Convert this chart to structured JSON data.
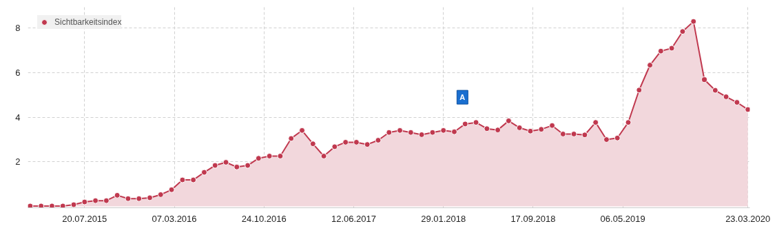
{
  "chart_data": {
    "type": "area",
    "x": [
      "2015-03-02",
      "2015-03-30",
      "2015-04-27",
      "2015-05-25",
      "2015-06-22",
      "2015-07-20",
      "2015-08-17",
      "2015-09-14",
      "2015-10-12",
      "2015-11-09",
      "2015-12-07",
      "2016-01-04",
      "2016-02-01",
      "2016-02-29",
      "2016-03-28",
      "2016-04-25",
      "2016-05-23",
      "2016-06-20",
      "2016-07-18",
      "2016-08-15",
      "2016-09-12",
      "2016-10-10",
      "2016-11-07",
      "2016-12-05",
      "2017-01-02",
      "2017-01-30",
      "2017-02-27",
      "2017-03-27",
      "2017-04-24",
      "2017-05-22",
      "2017-06-19",
      "2017-07-17",
      "2017-08-14",
      "2017-09-11",
      "2017-10-09",
      "2017-11-06",
      "2017-12-04",
      "2018-01-01",
      "2018-01-29",
      "2018-02-26",
      "2018-03-26",
      "2018-04-23",
      "2018-05-21",
      "2018-06-18",
      "2018-07-16",
      "2018-08-13",
      "2018-09-10",
      "2018-10-08",
      "2018-11-05",
      "2018-12-03",
      "2018-12-31",
      "2019-01-28",
      "2019-02-25",
      "2019-03-25",
      "2019-04-22",
      "2019-05-20",
      "2019-06-17",
      "2019-07-15",
      "2019-08-12",
      "2019-09-09",
      "2019-10-07",
      "2019-11-04",
      "2019-12-02",
      "2019-12-30",
      "2020-01-27",
      "2020-02-24",
      "2020-03-23"
    ],
    "series": [
      {
        "name": "Sichtbarkeitsindex",
        "color": "#c0394f",
        "values": [
          0.02,
          0.02,
          0.02,
          0.02,
          0.08,
          0.2,
          0.26,
          0.26,
          0.5,
          0.35,
          0.35,
          0.39,
          0.53,
          0.75,
          1.19,
          1.19,
          1.53,
          1.84,
          1.98,
          1.77,
          1.84,
          2.16,
          2.26,
          2.26,
          3.05,
          3.41,
          2.81,
          2.26,
          2.68,
          2.88,
          2.88,
          2.78,
          2.97,
          3.32,
          3.41,
          3.32,
          3.22,
          3.32,
          3.41,
          3.35,
          3.7,
          3.77,
          3.49,
          3.43,
          3.84,
          3.53,
          3.38,
          3.46,
          3.63,
          3.25,
          3.25,
          3.21,
          3.77,
          3.0,
          3.07,
          3.77,
          5.22,
          6.34,
          6.97,
          7.1,
          7.85,
          8.3,
          5.69,
          5.21,
          4.92,
          4.67,
          4.35
        ]
      }
    ],
    "xlim": [
      "2015-02-24",
      "2020-03-28"
    ],
    "xticks": [
      {
        "value": "2015-07-20",
        "label": "20.07.2015"
      },
      {
        "value": "2016-03-07",
        "label": "07.03.2016"
      },
      {
        "value": "2016-10-24",
        "label": "24.10.2016"
      },
      {
        "value": "2017-06-12",
        "label": "12.06.2017"
      },
      {
        "value": "2018-01-29",
        "label": "29.01.2018"
      },
      {
        "value": "2018-09-17",
        "label": "17.09.2018"
      },
      {
        "value": "2019-05-06",
        "label": "06.05.2019"
      },
      {
        "value": "2020-03-23",
        "label": "23.03.2020"
      }
    ],
    "ylim": [
      -0.06,
      9
    ],
    "yticks": [
      2,
      4,
      6,
      8
    ],
    "annotations": [
      {
        "text": "A",
        "x": "2018-03-19",
        "y": 4.9
      }
    ],
    "grid": true,
    "legend": "top left",
    "marker": "circle",
    "line_style": "solid"
  }
}
